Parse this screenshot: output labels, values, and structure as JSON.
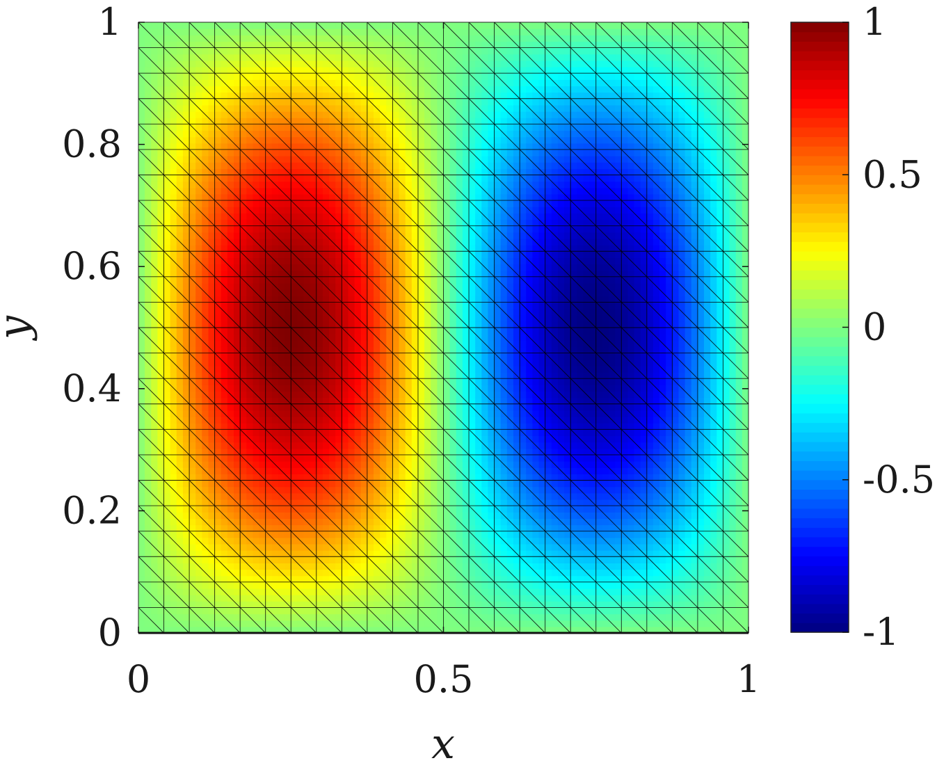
{
  "chart_data": {
    "type": "heatmap",
    "plot_style": "triangular-mesh-colormap",
    "field": "u(x,y) = sin(2*pi*x) * sin(pi*y)",
    "title": "",
    "xlabel": "x",
    "ylabel": "y",
    "xlim": [
      0,
      1
    ],
    "ylim": [
      0,
      1
    ],
    "x_ticks": [
      0,
      0.5,
      1
    ],
    "x_tick_labels": [
      "0",
      "0.5",
      "1"
    ],
    "y_ticks": [
      0,
      0.2,
      0.4,
      0.6,
      0.8,
      1
    ],
    "y_tick_labels": [
      "0",
      "0.2",
      "0.4",
      "0.6",
      "0.8",
      "1"
    ],
    "mesh": {
      "nx": 24,
      "ny": 24,
      "element": "triangle",
      "diagonal": "top-left to bottom-right"
    },
    "extrema": [
      {
        "x": 0.25,
        "y": 0.5,
        "value": 1,
        "label": "max"
      },
      {
        "x": 0.75,
        "y": 0.5,
        "value": -1,
        "label": "min"
      }
    ],
    "colorbar": {
      "colormap": "jet",
      "clim": [
        -1,
        1
      ],
      "ticks": [
        -1,
        -0.5,
        0,
        0.5,
        1
      ],
      "tick_labels": [
        "-1",
        "-0.5",
        "0",
        "0.5",
        "1"
      ]
    },
    "grid": false,
    "legend": "none"
  }
}
